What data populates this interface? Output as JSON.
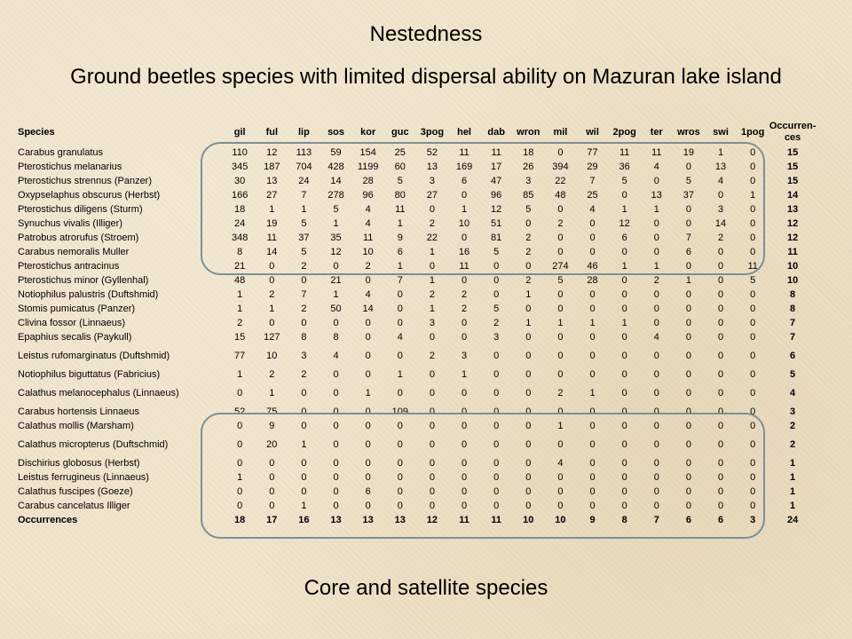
{
  "title": "Nestedness",
  "subtitle": "Ground beetles species with limited dispersal ability on Mazuran lake island",
  "footer": "Core and satellite species",
  "table": {
    "species_header": "Species",
    "columns": [
      "gil",
      "ful",
      "lip",
      "sos",
      "kor",
      "guc",
      "3pog",
      "hel",
      "dab",
      "wron",
      "mil",
      "wil",
      "2pog",
      "ter",
      "wros",
      "swi",
      "1pog"
    ],
    "occ_header": "Occurren-ces",
    "rows": [
      {
        "name": "Carabus granulatus",
        "values": [
          "110",
          "12",
          "113",
          "59",
          "154",
          "25",
          "52",
          "11",
          "11",
          "18",
          "0",
          "77",
          "11",
          "11",
          "19",
          "1",
          "0"
        ],
        "occ": "15"
      },
      {
        "name": "Pterostichus melanarius",
        "values": [
          "345",
          "187",
          "704",
          "428",
          "1199",
          "60",
          "13",
          "169",
          "17",
          "26",
          "394",
          "29",
          "36",
          "4",
          "0",
          "13",
          "0"
        ],
        "occ": "15"
      },
      {
        "name": "Pterostichus strennus (Panzer)",
        "values": [
          "30",
          "13",
          "24",
          "14",
          "28",
          "5",
          "3",
          "6",
          "47",
          "3",
          "22",
          "7",
          "5",
          "0",
          "5",
          "4",
          "0"
        ],
        "occ": "15"
      },
      {
        "name": "Oxypselaphus obscurus (Herbst)",
        "values": [
          "166",
          "27",
          "7",
          "278",
          "96",
          "80",
          "27",
          "0",
          "96",
          "85",
          "48",
          "25",
          "0",
          "13",
          "37",
          "0",
          "1"
        ],
        "occ": "14"
      },
      {
        "name": "Pterostichus diligens (Sturm)",
        "values": [
          "18",
          "1",
          "1",
          "5",
          "4",
          "11",
          "0",
          "1",
          "12",
          "5",
          "0",
          "4",
          "1",
          "1",
          "0",
          "3",
          "0"
        ],
        "occ": "13"
      },
      {
        "name": "Synuchus vivalis (Illiger)",
        "values": [
          "24",
          "19",
          "5",
          "1",
          "4",
          "1",
          "2",
          "10",
          "51",
          "0",
          "2",
          "0",
          "12",
          "0",
          "0",
          "14",
          "0"
        ],
        "occ": "12"
      },
      {
        "name": "Patrobus atrorufus (Stroem)",
        "values": [
          "348",
          "11",
          "37",
          "35",
          "11",
          "9",
          "22",
          "0",
          "81",
          "2",
          "0",
          "0",
          "6",
          "0",
          "7",
          "2",
          "0"
        ],
        "occ": "12"
      },
      {
        "name": "Carabus nemoralis Muller",
        "values": [
          "8",
          "14",
          "5",
          "12",
          "10",
          "6",
          "1",
          "16",
          "5",
          "2",
          "0",
          "0",
          "0",
          "0",
          "6",
          "0",
          "0"
        ],
        "occ": "11"
      },
      {
        "name": "Pterostichus antracinus",
        "values": [
          "21",
          "0",
          "2",
          "0",
          "2",
          "1",
          "0",
          "11",
          "0",
          "0",
          "274",
          "46",
          "1",
          "1",
          "0",
          "0",
          "11"
        ],
        "occ": "10"
      },
      {
        "name": "Pterostichus minor (Gyllenhal)",
        "values": [
          "48",
          "0",
          "0",
          "21",
          "0",
          "7",
          "1",
          "0",
          "0",
          "2",
          "5",
          "28",
          "0",
          "2",
          "1",
          "0",
          "5"
        ],
        "occ": "10"
      },
      {
        "name": "Notiophilus palustris (Duftshmid)",
        "values": [
          "1",
          "2",
          "7",
          "1",
          "4",
          "0",
          "2",
          "2",
          "0",
          "1",
          "0",
          "0",
          "0",
          "0",
          "0",
          "0",
          "0"
        ],
        "occ": "8"
      },
      {
        "name": "Stomis pumicatus (Panzer)",
        "values": [
          "1",
          "1",
          "2",
          "50",
          "14",
          "0",
          "1",
          "2",
          "5",
          "0",
          "0",
          "0",
          "0",
          "0",
          "0",
          "0",
          "0"
        ],
        "occ": "8"
      },
      {
        "name": "Clivina fossor (Linnaeus)",
        "values": [
          "2",
          "0",
          "0",
          "0",
          "0",
          "0",
          "3",
          "0",
          "2",
          "1",
          "1",
          "1",
          "1",
          "0",
          "0",
          "0",
          "0"
        ],
        "occ": "7"
      },
      {
        "name": "Epaphius secalis (Paykull)",
        "values": [
          "15",
          "127",
          "8",
          "8",
          "0",
          "4",
          "0",
          "0",
          "3",
          "0",
          "0",
          "0",
          "0",
          "4",
          "0",
          "0",
          "0"
        ],
        "occ": "7"
      },
      {
        "name": "Leistus rufomarginatus (Duftshmid)",
        "values": [
          "77",
          "10",
          "3",
          "4",
          "0",
          "0",
          "2",
          "3",
          "0",
          "0",
          "0",
          "0",
          "0",
          "0",
          "0",
          "0",
          "0"
        ],
        "occ": "6",
        "two_line": true
      },
      {
        "name": "Notiophilus biguttatus (Fabricius)",
        "values": [
          "1",
          "2",
          "2",
          "0",
          "0",
          "1",
          "0",
          "1",
          "0",
          "0",
          "0",
          "0",
          "0",
          "0",
          "0",
          "0",
          "0"
        ],
        "occ": "5"
      },
      {
        "name": "Calathus melanocephalus (Linnaeus)",
        "values": [
          "0",
          "1",
          "0",
          "0",
          "1",
          "0",
          "0",
          "0",
          "0",
          "0",
          "2",
          "1",
          "0",
          "0",
          "0",
          "0",
          "0"
        ],
        "occ": "4",
        "two_line": true
      },
      {
        "name": "Carabus hortensis Linnaeus",
        "values": [
          "52",
          "75",
          "0",
          "0",
          "0",
          "109",
          "0",
          "0",
          "0",
          "0",
          "0",
          "0",
          "0",
          "0",
          "0",
          "0",
          "0"
        ],
        "occ": "3"
      },
      {
        "name": "Calathus mollis (Marsham)",
        "values": [
          "0",
          "9",
          "0",
          "0",
          "0",
          "0",
          "0",
          "0",
          "0",
          "0",
          "1",
          "0",
          "0",
          "0",
          "0",
          "0",
          "0"
        ],
        "occ": "2"
      },
      {
        "name": "Calathus micropterus (Duftschmid)",
        "values": [
          "0",
          "20",
          "1",
          "0",
          "0",
          "0",
          "0",
          "0",
          "0",
          "0",
          "0",
          "0",
          "0",
          "0",
          "0",
          "0",
          "0"
        ],
        "occ": "2",
        "two_line": true
      },
      {
        "name": "Dischirius globosus (Herbst)",
        "values": [
          "0",
          "0",
          "0",
          "0",
          "0",
          "0",
          "0",
          "0",
          "0",
          "0",
          "4",
          "0",
          "0",
          "0",
          "0",
          "0",
          "0"
        ],
        "occ": "1"
      },
      {
        "name": "Leistus ferrugineus (Linnaeus)",
        "values": [
          "1",
          "0",
          "0",
          "0",
          "0",
          "0",
          "0",
          "0",
          "0",
          "0",
          "0",
          "0",
          "0",
          "0",
          "0",
          "0",
          "0"
        ],
        "occ": "1"
      },
      {
        "name": "Calathus fuscipes (Goeze)",
        "values": [
          "0",
          "0",
          "0",
          "0",
          "6",
          "0",
          "0",
          "0",
          "0",
          "0",
          "0",
          "0",
          "0",
          "0",
          "0",
          "0",
          "0"
        ],
        "occ": "1"
      },
      {
        "name": "Carabus cancelatus Illiger",
        "values": [
          "0",
          "0",
          "1",
          "0",
          "0",
          "0",
          "0",
          "0",
          "0",
          "0",
          "0",
          "0",
          "0",
          "0",
          "0",
          "0",
          "0"
        ],
        "occ": "1"
      }
    ],
    "totals": {
      "label": "Occurrences",
      "values": [
        "18",
        "17",
        "16",
        "13",
        "13",
        "13",
        "12",
        "11",
        "11",
        "10",
        "10",
        "9",
        "8",
        "7",
        "6",
        "6",
        "3"
      ],
      "occ": "24"
    }
  }
}
